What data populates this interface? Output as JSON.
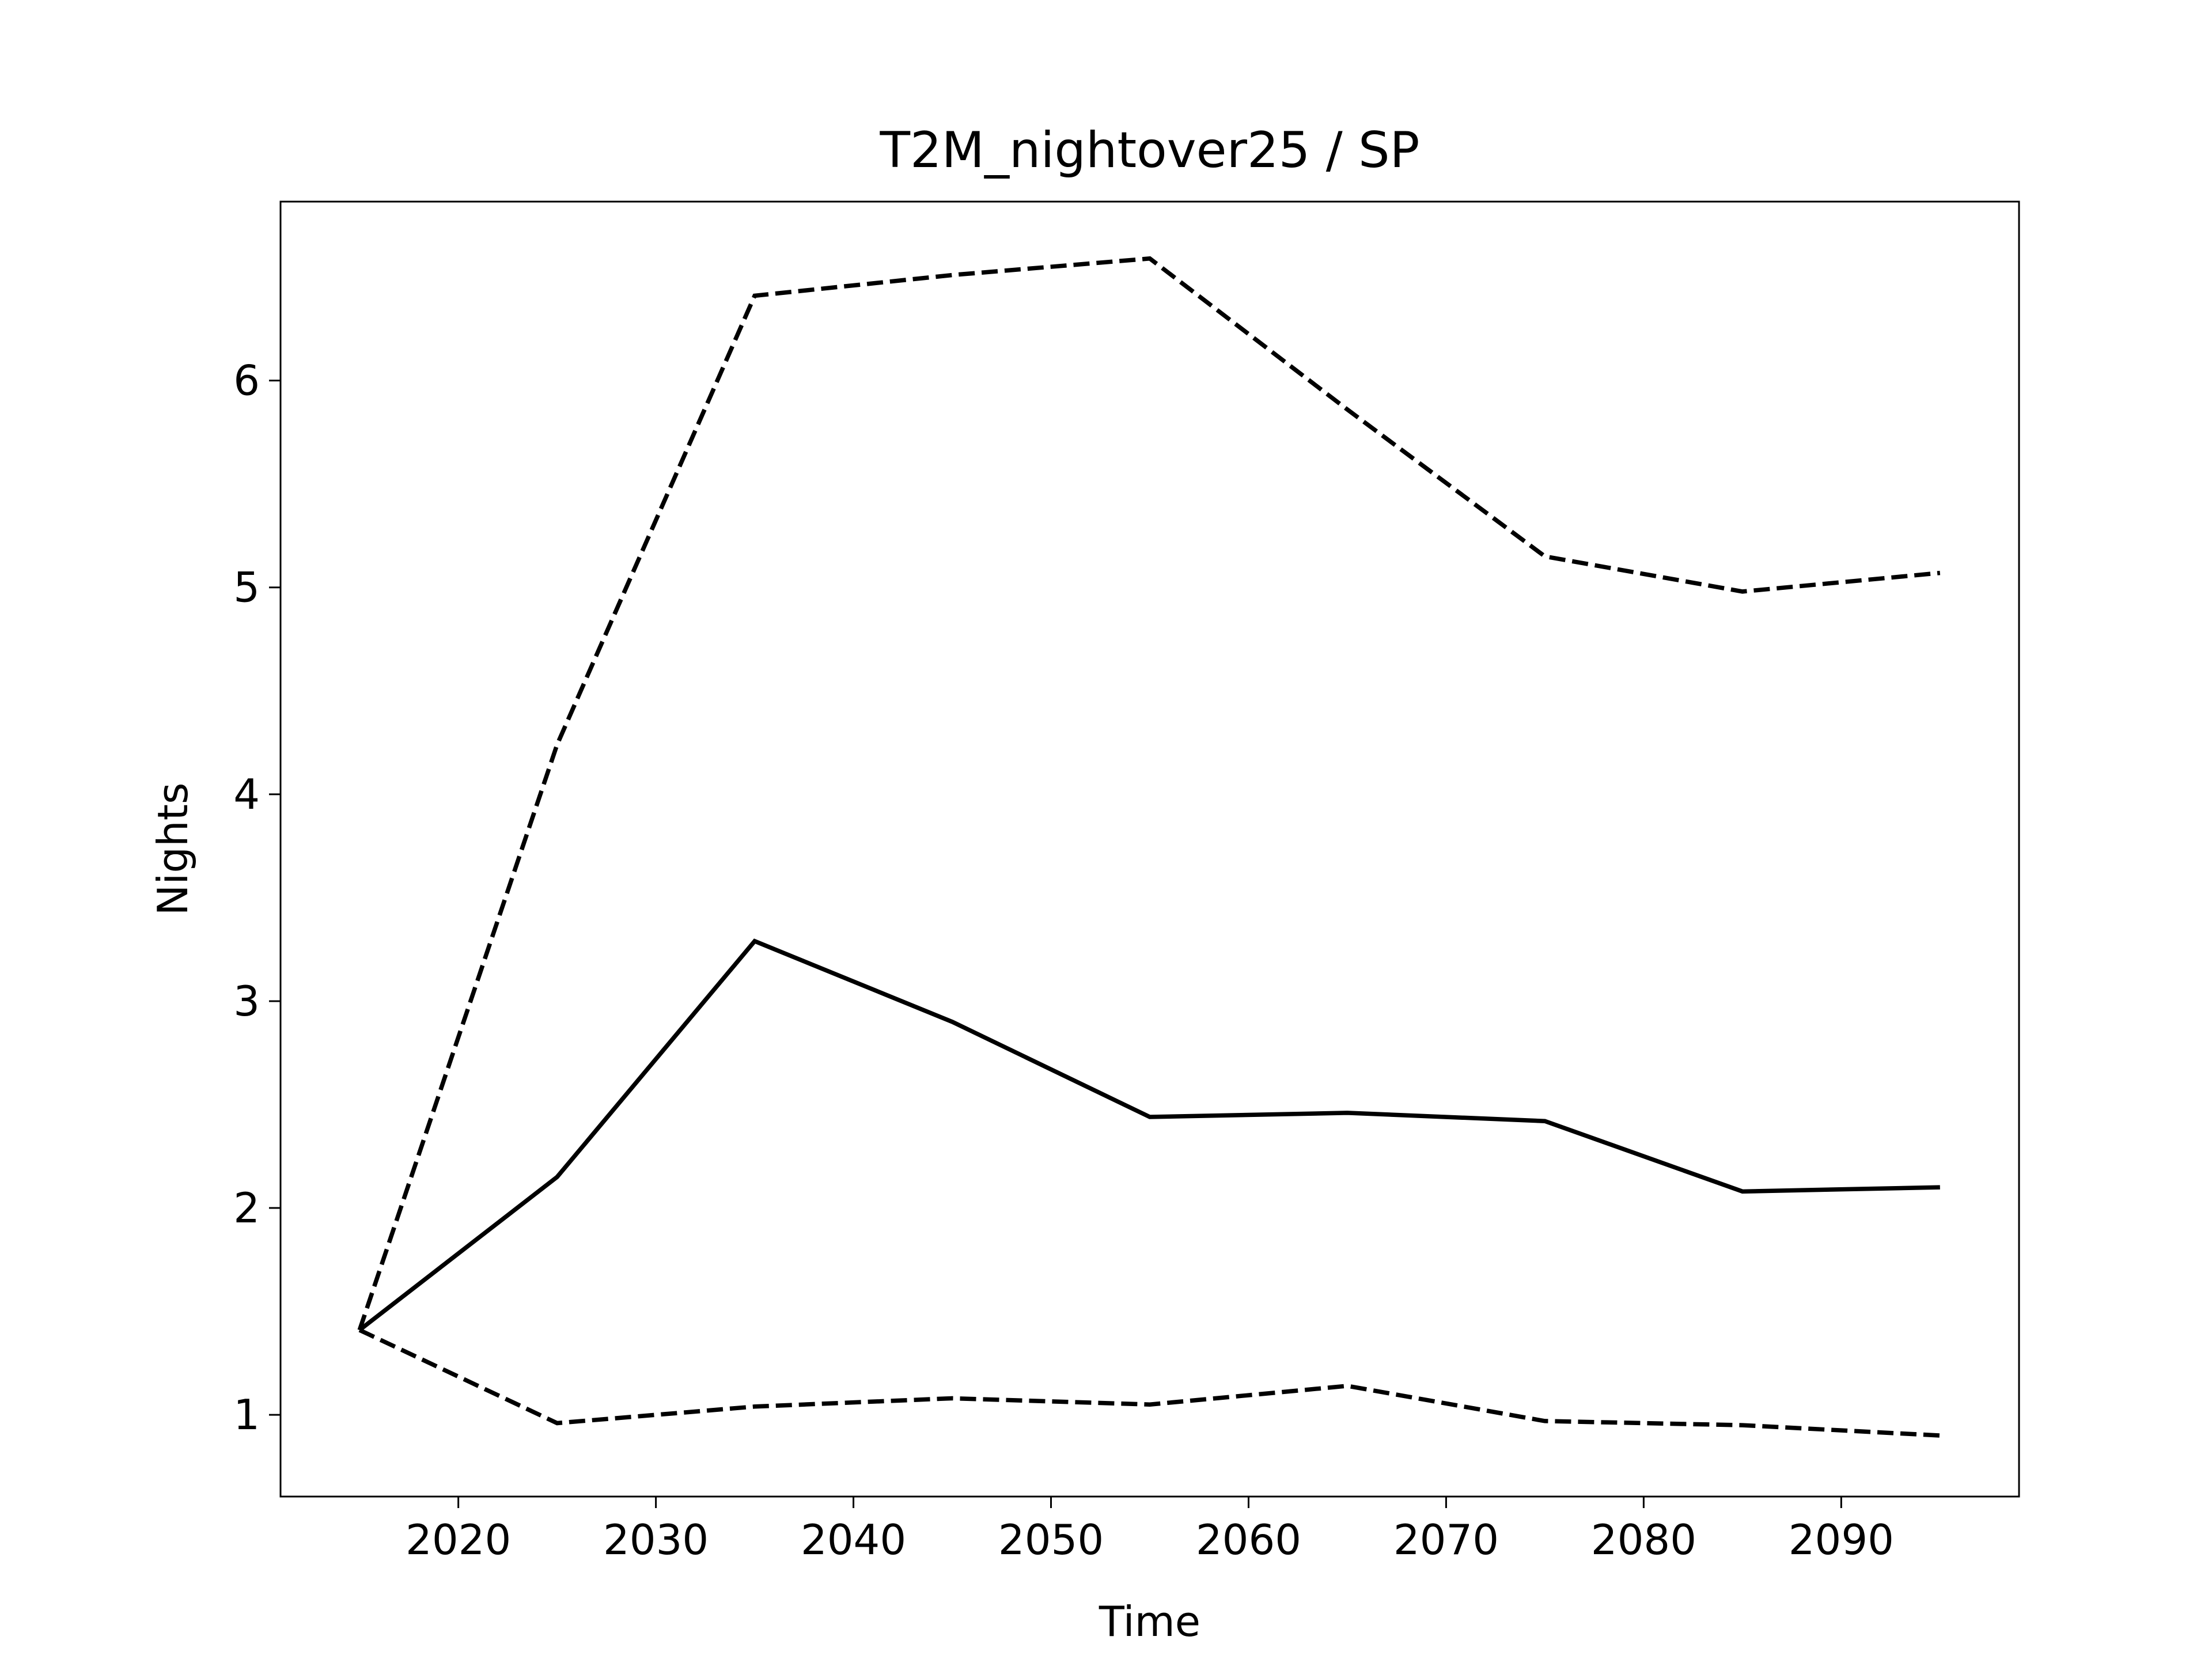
{
  "chart_data": {
    "type": "line",
    "title": "T2M_nightover25 / SP",
    "xlabel": "Time",
    "ylabel": "Nights",
    "x": [
      2015,
      2025,
      2035,
      2045,
      2055,
      2065,
      2075,
      2085,
      2095
    ],
    "series": [
      {
        "color": "#000000",
        "linestyle": "solid",
        "values": [
          1.41,
          2.15,
          3.29,
          2.9,
          2.44,
          2.46,
          2.42,
          2.08,
          2.1
        ]
      },
      {
        "color": "#000000",
        "linestyle": "dashed",
        "values": [
          1.41,
          4.24,
          6.41,
          6.51,
          6.59,
          5.86,
          5.15,
          4.98,
          5.07
        ]
      },
      {
        "color": "#000000",
        "linestyle": "dashed",
        "values": [
          1.41,
          0.96,
          1.04,
          1.08,
          1.05,
          1.14,
          0.97,
          0.95,
          0.9
        ]
      }
    ],
    "xlim": [
      2011,
      2099
    ],
    "xticks": [
      2020,
      2030,
      2040,
      2050,
      2060,
      2070,
      2080,
      2090
    ],
    "ylim": [
      0.605,
      6.865
    ],
    "yticks": [
      1,
      2,
      3,
      4,
      5,
      6
    ],
    "grid": false
  }
}
